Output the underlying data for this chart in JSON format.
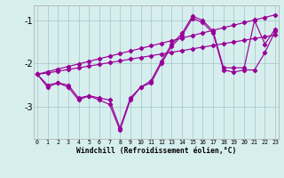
{
  "x": [
    0,
    1,
    2,
    3,
    4,
    5,
    6,
    7,
    8,
    9,
    10,
    11,
    12,
    13,
    14,
    15,
    16,
    17,
    18,
    19,
    20,
    21,
    22,
    23
  ],
  "line1": [
    -2.25,
    -2.55,
    -2.45,
    -2.55,
    -2.85,
    -2.75,
    -2.85,
    -2.95,
    -3.55,
    -2.85,
    -2.55,
    -2.45,
    -2.0,
    -1.6,
    -1.35,
    -0.95,
    -1.05,
    -1.3,
    -2.15,
    -2.2,
    -2.15,
    -2.15,
    -1.75,
    -1.25
  ],
  "line2": [
    -2.25,
    -2.5,
    -2.45,
    -2.5,
    -2.8,
    -2.75,
    -2.8,
    -2.85,
    -3.5,
    -2.8,
    -2.55,
    -2.4,
    -1.95,
    -1.55,
    -1.3,
    -0.9,
    -1.0,
    -1.25,
    -2.1,
    -2.1,
    -2.1,
    -1.0,
    -1.55,
    -1.2
  ],
  "line_straight1": [
    -2.25,
    -2.22,
    -2.18,
    -2.14,
    -2.1,
    -2.06,
    -2.02,
    -1.98,
    -1.94,
    -1.9,
    -1.86,
    -1.82,
    -1.78,
    -1.74,
    -1.7,
    -1.66,
    -1.62,
    -1.58,
    -1.54,
    -1.5,
    -1.46,
    -1.42,
    -1.38,
    -1.34
  ],
  "line_straight2": [
    -2.25,
    -2.19,
    -2.13,
    -2.07,
    -2.01,
    -1.95,
    -1.89,
    -1.83,
    -1.77,
    -1.71,
    -1.65,
    -1.59,
    -1.53,
    -1.47,
    -1.41,
    -1.35,
    -1.29,
    -1.23,
    -1.17,
    -1.11,
    -1.05,
    -0.99,
    -0.93,
    -0.87
  ],
  "bg_color": "#d7eeee",
  "line_color": "#990099",
  "grid_color": "#aacccc",
  "xlabel": "Windchill (Refroidissement éolien,°C)",
  "yticks": [
    -3,
    -2,
    -1
  ],
  "xticks": [
    0,
    1,
    2,
    3,
    4,
    5,
    6,
    7,
    8,
    9,
    10,
    11,
    12,
    13,
    14,
    15,
    16,
    17,
    18,
    19,
    20,
    21,
    22,
    23
  ],
  "xlim": [
    -0.3,
    23.3
  ],
  "ylim": [
    -3.75,
    -0.65
  ]
}
